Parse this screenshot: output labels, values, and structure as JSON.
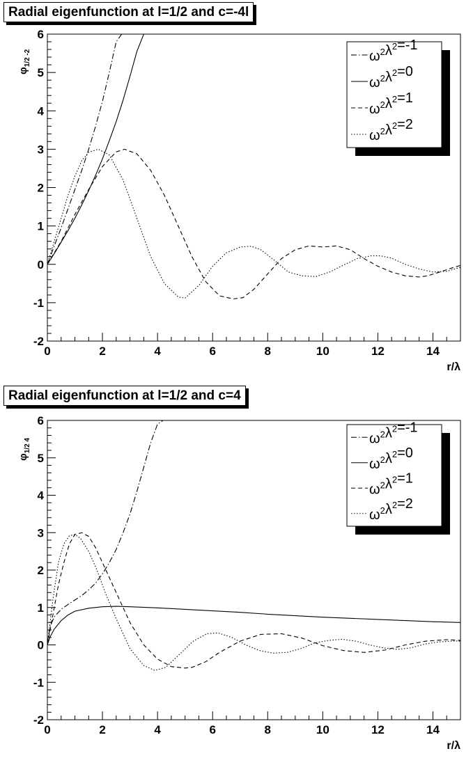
{
  "chart_data": [
    {
      "type": "line",
      "title": "Radial eigenfunction at l=1/2 and c=-4l",
      "ylabel": "φ_{1/2 -2}",
      "xlabel": "r/λ",
      "xlim": [
        0,
        15
      ],
      "ylim": [
        -2,
        6
      ],
      "x_ticks": [
        "0",
        "2",
        "4",
        "6",
        "8",
        "10",
        "12",
        "14"
      ],
      "y_ticks": [
        "-2",
        "-1",
        "0",
        "1",
        "2",
        "3",
        "4",
        "5",
        "6"
      ],
      "legend_position": "top-right",
      "grid": false,
      "series": [
        {
          "name": "ω²λ²=-1",
          "style": "dash-dot",
          "x": [
            0,
            0.25,
            0.5,
            0.75,
            1.0,
            1.25,
            1.5,
            1.75,
            2.0,
            2.25,
            2.5,
            2.7
          ],
          "y": [
            0,
            0.48,
            0.95,
            1.45,
            1.95,
            2.45,
            3.0,
            3.6,
            4.25,
            5.0,
            5.8,
            6.0
          ]
        },
        {
          "name": "ω²λ²=0",
          "style": "solid",
          "x": [
            0,
            0.25,
            0.5,
            0.75,
            1.0,
            1.25,
            1.5,
            1.75,
            2.0,
            2.25,
            2.5,
            2.75,
            3.0,
            3.25,
            3.5,
            3.6
          ],
          "y": [
            0,
            0.28,
            0.58,
            0.88,
            1.2,
            1.55,
            1.92,
            2.32,
            2.75,
            3.22,
            3.72,
            4.28,
            4.9,
            5.55,
            6.0,
            6.0
          ]
        },
        {
          "name": "ω²λ²=1",
          "style": "dashed",
          "x": [
            0,
            0.25,
            0.5,
            0.75,
            1.0,
            1.5,
            2.0,
            2.5,
            2.8,
            3.25,
            3.75,
            4.25,
            4.75,
            5.25,
            5.75,
            6.25,
            6.75,
            7.1,
            7.5,
            8.0,
            8.5,
            9.0,
            9.5,
            10.0,
            10.5,
            11.0,
            11.5,
            12.0,
            12.5,
            13.0,
            13.5,
            13.8,
            14.25,
            14.75,
            15.0
          ],
          "y": [
            0,
            0.3,
            0.6,
            0.95,
            1.3,
            1.95,
            2.55,
            2.93,
            3.0,
            2.88,
            2.45,
            1.8,
            1.0,
            0.2,
            -0.45,
            -0.82,
            -0.9,
            -0.87,
            -0.65,
            -0.25,
            0.15,
            0.38,
            0.48,
            0.45,
            0.48,
            0.38,
            0.15,
            -0.05,
            -0.2,
            -0.3,
            -0.33,
            -0.3,
            -0.2,
            -0.08,
            -0.03
          ]
        },
        {
          "name": "ω²λ²=2",
          "style": "dotted",
          "x": [
            0,
            0.25,
            0.5,
            0.75,
            1.0,
            1.25,
            1.5,
            1.85,
            2.25,
            2.75,
            3.25,
            3.75,
            4.25,
            4.75,
            5.0,
            5.5,
            6.0,
            6.5,
            7.0,
            7.4,
            7.75,
            8.25,
            8.75,
            9.25,
            9.75,
            10.25,
            10.75,
            11.25,
            11.75,
            12.1,
            12.5,
            13.0,
            13.5,
            14.0,
            14.5,
            15.0
          ],
          "y": [
            0,
            0.6,
            1.2,
            1.8,
            2.3,
            2.7,
            2.92,
            3.0,
            2.85,
            2.2,
            1.2,
            0.2,
            -0.5,
            -0.85,
            -0.88,
            -0.55,
            -0.05,
            0.3,
            0.45,
            0.47,
            0.38,
            0.1,
            -0.2,
            -0.3,
            -0.32,
            -0.2,
            -0.02,
            0.15,
            0.22,
            0.22,
            0.16,
            0.0,
            -0.12,
            -0.2,
            -0.18,
            -0.08
          ]
        }
      ]
    },
    {
      "type": "line",
      "title": "Radial eigenfunction at l=1/2 and c=4",
      "ylabel": "φ_{1/2 4}",
      "xlabel": "r/λ",
      "xlim": [
        0,
        15
      ],
      "ylim": [
        -2,
        6
      ],
      "x_ticks": [
        "0",
        "2",
        "4",
        "6",
        "8",
        "10",
        "12",
        "14"
      ],
      "y_ticks": [
        "-2",
        "-1",
        "0",
        "1",
        "2",
        "3",
        "4",
        "5",
        "6"
      ],
      "legend_position": "top-right",
      "grid": false,
      "series": [
        {
          "name": "ω²λ²=-1",
          "style": "dash-dot",
          "x": [
            0,
            0.1,
            0.25,
            0.5,
            0.75,
            1.0,
            1.25,
            1.5,
            1.75,
            2.0,
            2.25,
            2.5,
            2.75,
            3.0,
            3.25,
            3.5,
            3.75,
            4.0,
            4.2
          ],
          "y": [
            0,
            0.5,
            0.75,
            0.95,
            1.08,
            1.2,
            1.32,
            1.47,
            1.65,
            1.9,
            2.2,
            2.55,
            3.0,
            3.5,
            4.1,
            4.75,
            5.4,
            5.9,
            6.0
          ]
        },
        {
          "name": "ω²λ²=0",
          "style": "solid",
          "x": [
            0,
            0.1,
            0.25,
            0.5,
            0.75,
            1.0,
            1.5,
            2.0,
            2.5,
            3.0,
            4.0,
            5.0,
            6.0,
            7.0,
            8.0,
            9.0,
            10.0,
            11.0,
            12.0,
            13.0,
            14.0,
            15.0
          ],
          "y": [
            0,
            0.22,
            0.42,
            0.65,
            0.8,
            0.9,
            0.98,
            1.02,
            1.03,
            1.02,
            0.99,
            0.95,
            0.91,
            0.87,
            0.82,
            0.78,
            0.74,
            0.71,
            0.68,
            0.65,
            0.62,
            0.6
          ]
        },
        {
          "name": "ω²λ²=1",
          "style": "dashed",
          "x": [
            0,
            0.2,
            0.4,
            0.6,
            0.8,
            1.0,
            1.25,
            1.5,
            1.75,
            2.0,
            2.5,
            3.0,
            3.5,
            4.0,
            4.5,
            5.0,
            5.25,
            5.75,
            6.25,
            7.0,
            7.75,
            8.5,
            9.25,
            10.0,
            10.75,
            11.5,
            12.25,
            13.0,
            13.75,
            14.5,
            15.0
          ],
          "y": [
            0,
            0.8,
            1.6,
            2.2,
            2.7,
            2.95,
            3.0,
            2.9,
            2.6,
            2.2,
            1.4,
            0.6,
            0.0,
            -0.38,
            -0.58,
            -0.62,
            -0.6,
            -0.45,
            -0.2,
            0.1,
            0.28,
            0.3,
            0.18,
            -0.02,
            -0.15,
            -0.2,
            -0.14,
            0.0,
            0.1,
            0.14,
            0.12
          ]
        },
        {
          "name": "ω²λ²=2",
          "style": "dotted",
          "x": [
            0,
            0.2,
            0.4,
            0.6,
            0.8,
            1.0,
            1.2,
            1.5,
            1.8,
            2.1,
            2.5,
            3.0,
            3.5,
            3.9,
            4.3,
            4.8,
            5.3,
            5.8,
            6.2,
            6.7,
            7.2,
            7.7,
            8.2,
            8.7,
            9.2,
            9.7,
            10.2,
            10.7,
            11.2,
            11.7,
            12.2,
            12.7,
            13.2,
            13.7,
            14.2,
            14.7,
            15.0
          ],
          "y": [
            0,
            1.2,
            2.2,
            2.7,
            2.92,
            2.95,
            2.85,
            2.5,
            2.0,
            1.4,
            0.7,
            -0.1,
            -0.55,
            -0.68,
            -0.6,
            -0.25,
            0.1,
            0.3,
            0.32,
            0.2,
            0.0,
            -0.15,
            -0.22,
            -0.2,
            -0.1,
            0.05,
            0.12,
            0.15,
            0.1,
            0.0,
            -0.08,
            -0.12,
            -0.08,
            0.02,
            0.08,
            0.1,
            0.1
          ]
        }
      ]
    }
  ]
}
